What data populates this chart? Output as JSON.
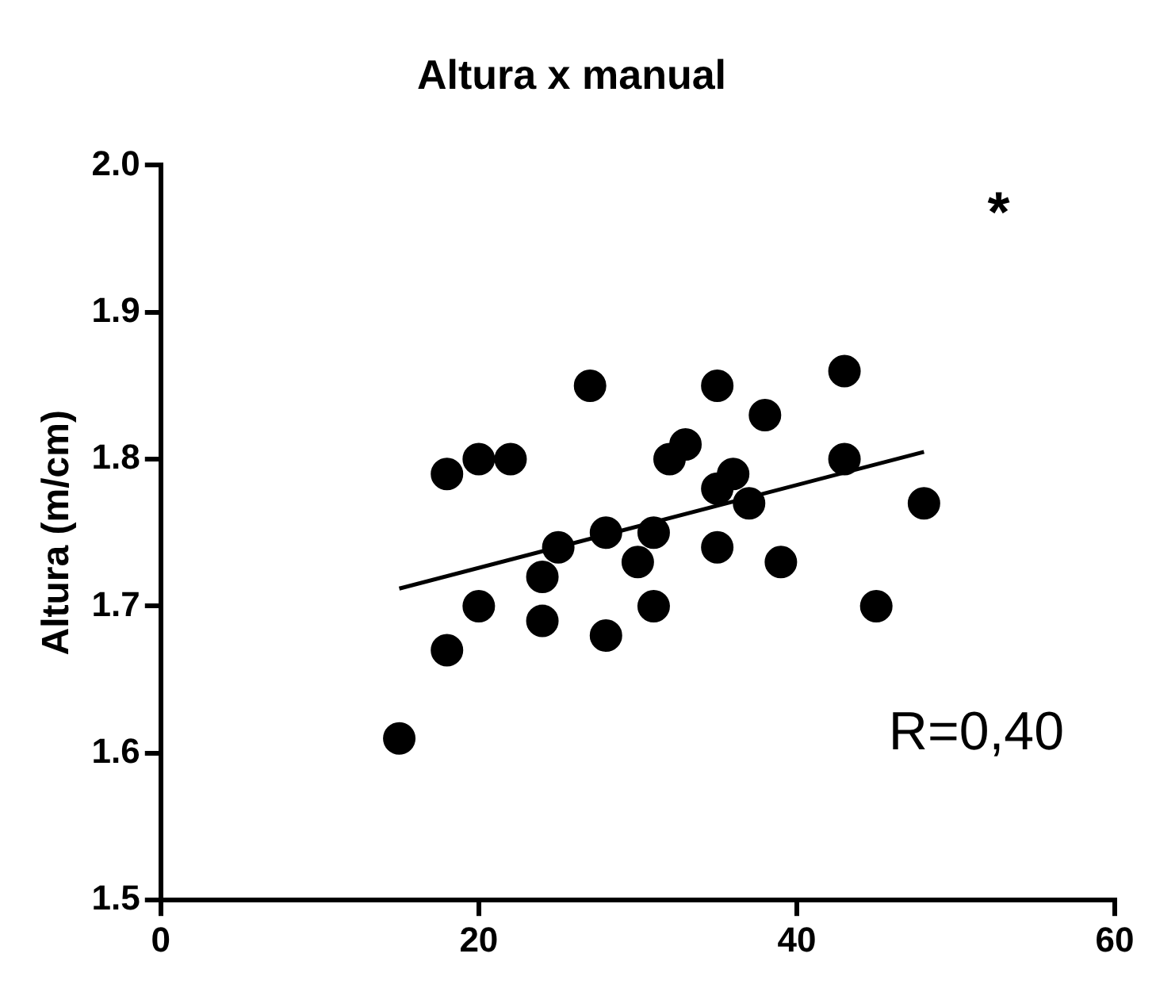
{
  "chart_data": {
    "type": "scatter",
    "title": "Altura x manual",
    "ylabel": "Altura (m/cm)",
    "xlim": [
      0,
      60
    ],
    "xticks": [
      0,
      20,
      40,
      60
    ],
    "ylim": [
      1.5,
      2.0
    ],
    "yticks": [
      1.5,
      1.6,
      1.7,
      1.8,
      1.9,
      {
        "value": 2.0,
        "label": "2.0"
      }
    ],
    "grid": false,
    "legend": false,
    "marker": "circle",
    "annotations": [
      "*",
      "R=0,40"
    ],
    "series": [
      {
        "color": "#000000",
        "x": [
          15,
          18,
          18,
          20,
          20,
          22,
          24,
          24,
          25,
          27,
          28,
          28,
          30,
          31,
          31,
          32,
          33,
          35,
          35,
          35,
          36,
          37,
          38,
          39,
          43,
          43,
          45,
          48
        ],
        "values": [
          1.61,
          1.79,
          1.67,
          1.8,
          1.7,
          1.8,
          1.72,
          1.69,
          1.74,
          1.85,
          1.75,
          1.68,
          1.73,
          1.75,
          1.7,
          1.8,
          1.81,
          1.85,
          1.78,
          1.74,
          1.79,
          1.77,
          1.83,
          1.73,
          1.86,
          1.8,
          1.7,
          1.77
        ]
      },
      {
        "type": "line",
        "color": "#000000",
        "line_style": "solid",
        "marker": "none",
        "x": [
          15,
          48
        ],
        "values": [
          1.712,
          1.805
        ]
      }
    ]
  }
}
